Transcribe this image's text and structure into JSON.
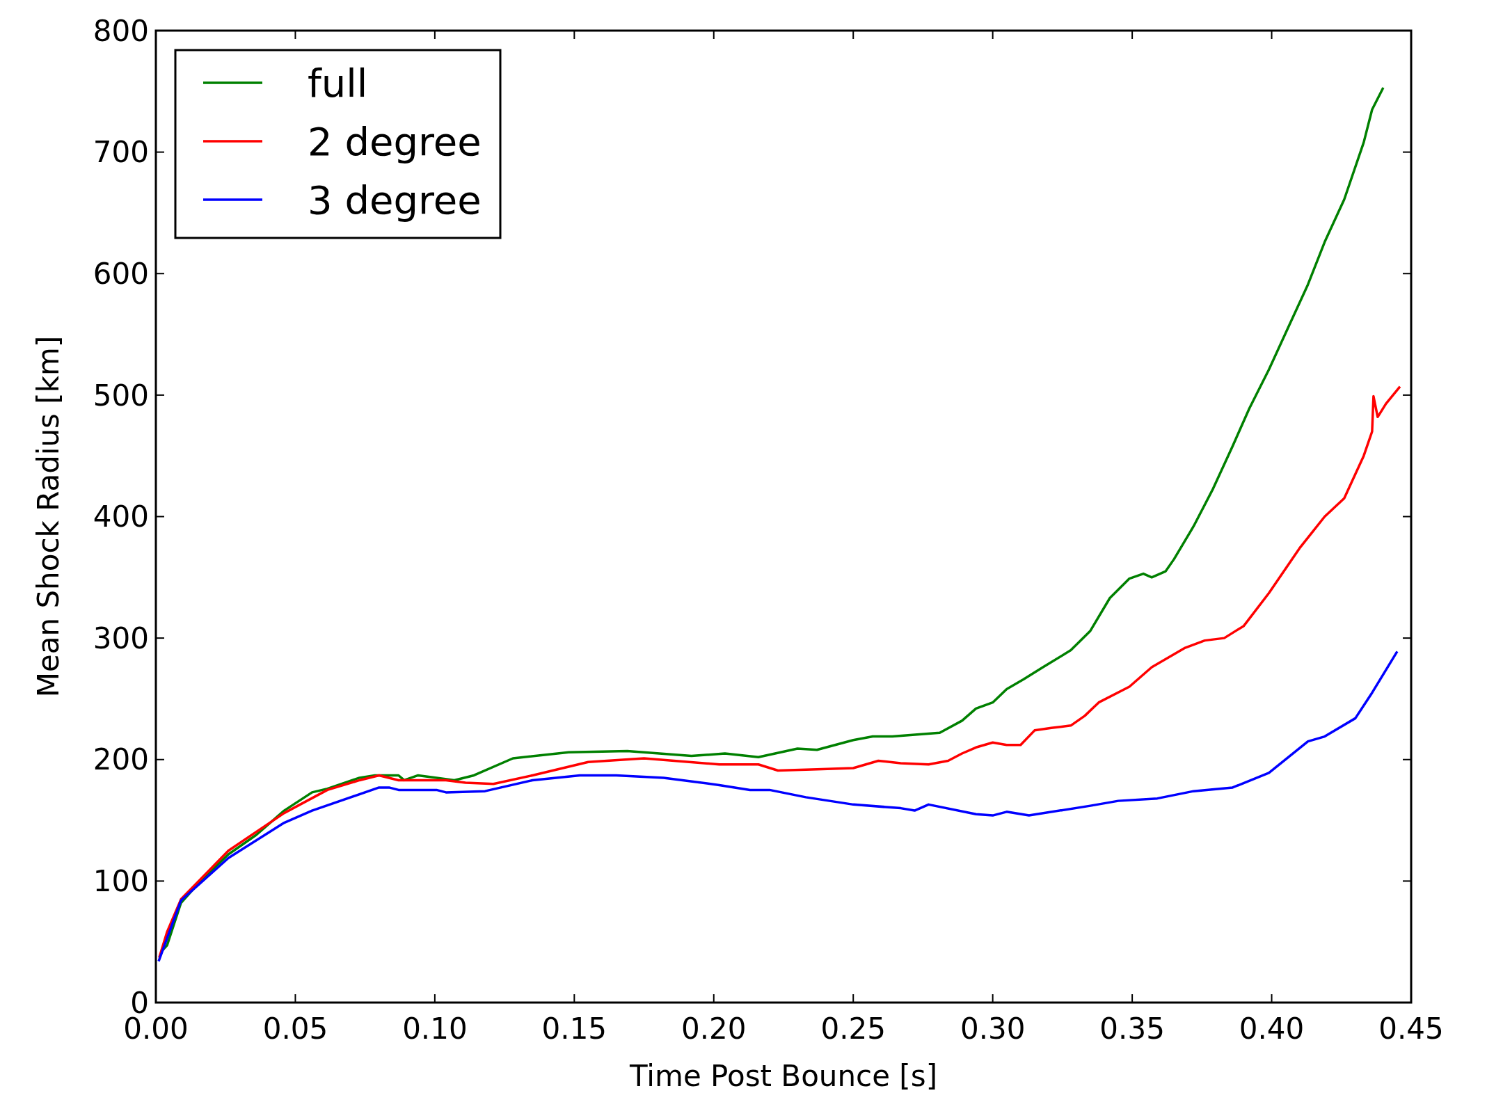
{
  "chart_data": {
    "type": "line",
    "xlabel": "Time Post Bounce [s]",
    "ylabel": "Mean Shock Radius [km]",
    "xlim": [
      0,
      0.45
    ],
    "ylim": [
      0,
      800
    ],
    "xticks": [
      {
        "value": 0,
        "label": "0.00"
      },
      {
        "value": 0.05,
        "label": "0.05"
      },
      {
        "value": 0.1,
        "label": "0.10"
      },
      {
        "value": 0.15,
        "label": "0.15"
      },
      {
        "value": 0.2,
        "label": "0.20"
      },
      {
        "value": 0.25,
        "label": "0.25"
      },
      {
        "value": 0.3,
        "label": "0.30"
      },
      {
        "value": 0.35,
        "label": "0.35"
      },
      {
        "value": 0.4,
        "label": "0.40"
      },
      {
        "value": 0.45,
        "label": "0.45"
      }
    ],
    "yticks": [
      0,
      100,
      200,
      300,
      400,
      500,
      600,
      700,
      800
    ],
    "grid": false,
    "legend": "top left",
    "marker": "none",
    "line_style": "solid",
    "series": [
      {
        "name": "full",
        "color": "#008000",
        "x": [
          0.002,
          0.004,
          0.009,
          0.0156,
          0.026,
          0.036,
          0.046,
          0.056,
          0.0615,
          0.073,
          0.0785,
          0.087,
          0.089,
          0.094,
          0.1006,
          0.107,
          0.114,
          0.128,
          0.148,
          0.169,
          0.192,
          0.204,
          0.216,
          0.23,
          0.237,
          0.25,
          0.257,
          0.264,
          0.281,
          0.289,
          0.294,
          0.3,
          0.305,
          0.311,
          0.318,
          0.328,
          0.335,
          0.342,
          0.349,
          0.354,
          0.357,
          0.362,
          0.365,
          0.372,
          0.379,
          0.386,
          0.392,
          0.399,
          0.406,
          0.413,
          0.419,
          0.426,
          0.433,
          0.436,
          0.44
        ],
        "values": [
          42,
          47,
          82,
          99,
          122,
          138,
          158,
          173,
          176,
          185,
          187,
          187,
          183,
          187,
          185,
          183,
          187,
          201,
          206,
          207,
          203,
          205,
          202,
          209,
          208,
          216,
          219,
          219,
          222,
          232,
          242,
          247,
          258,
          266,
          276,
          290,
          306,
          333,
          349,
          353,
          350,
          355,
          365,
          392,
          423,
          458,
          489,
          521,
          556,
          591,
          626,
          661,
          708,
          735,
          753
        ]
      },
      {
        "name": "2 degree",
        "color": "#ff0000",
        "x": [
          0.0012,
          0.004,
          0.009,
          0.026,
          0.046,
          0.0615,
          0.073,
          0.08,
          0.087,
          0.104,
          0.111,
          0.121,
          0.135,
          0.155,
          0.175,
          0.202,
          0.216,
          0.223,
          0.237,
          0.25,
          0.259,
          0.267,
          0.277,
          0.284,
          0.289,
          0.294,
          0.3,
          0.305,
          0.31,
          0.315,
          0.321,
          0.328,
          0.333,
          0.338,
          0.349,
          0.357,
          0.369,
          0.376,
          0.383,
          0.39,
          0.399,
          0.41,
          0.419,
          0.426,
          0.433,
          0.436,
          0.4365,
          0.438,
          0.441,
          0.446
        ],
        "values": [
          37,
          58,
          85,
          125,
          156,
          175,
          183,
          187,
          183,
          183,
          181,
          180,
          187,
          198,
          201,
          196,
          196,
          191,
          192,
          193,
          199,
          197,
          196,
          199,
          205,
          210,
          214,
          212,
          212,
          224,
          226,
          228,
          236,
          247,
          260,
          276,
          292,
          298,
          300,
          310,
          337,
          374,
          400,
          415,
          450,
          470,
          499,
          482,
          493,
          507
        ]
      },
      {
        "name": "3 degree",
        "color": "#0000ff",
        "x": [
          0.001,
          0.009,
          0.026,
          0.046,
          0.056,
          0.08,
          0.0836,
          0.087,
          0.1006,
          0.104,
          0.118,
          0.135,
          0.152,
          0.165,
          0.182,
          0.202,
          0.213,
          0.22,
          0.233,
          0.25,
          0.267,
          0.272,
          0.277,
          0.294,
          0.3,
          0.305,
          0.313,
          0.335,
          0.345,
          0.359,
          0.372,
          0.386,
          0.399,
          0.413,
          0.419,
          0.43,
          0.436,
          0.445
        ],
        "values": [
          34,
          84,
          119,
          148,
          158,
          177,
          177,
          175,
          175,
          173,
          174,
          183,
          187,
          187,
          185,
          179,
          175,
          175,
          169,
          163,
          160,
          158,
          163,
          155,
          154,
          157,
          154,
          162,
          166,
          168,
          174,
          177,
          189,
          215,
          219,
          234,
          255,
          289
        ]
      }
    ]
  }
}
